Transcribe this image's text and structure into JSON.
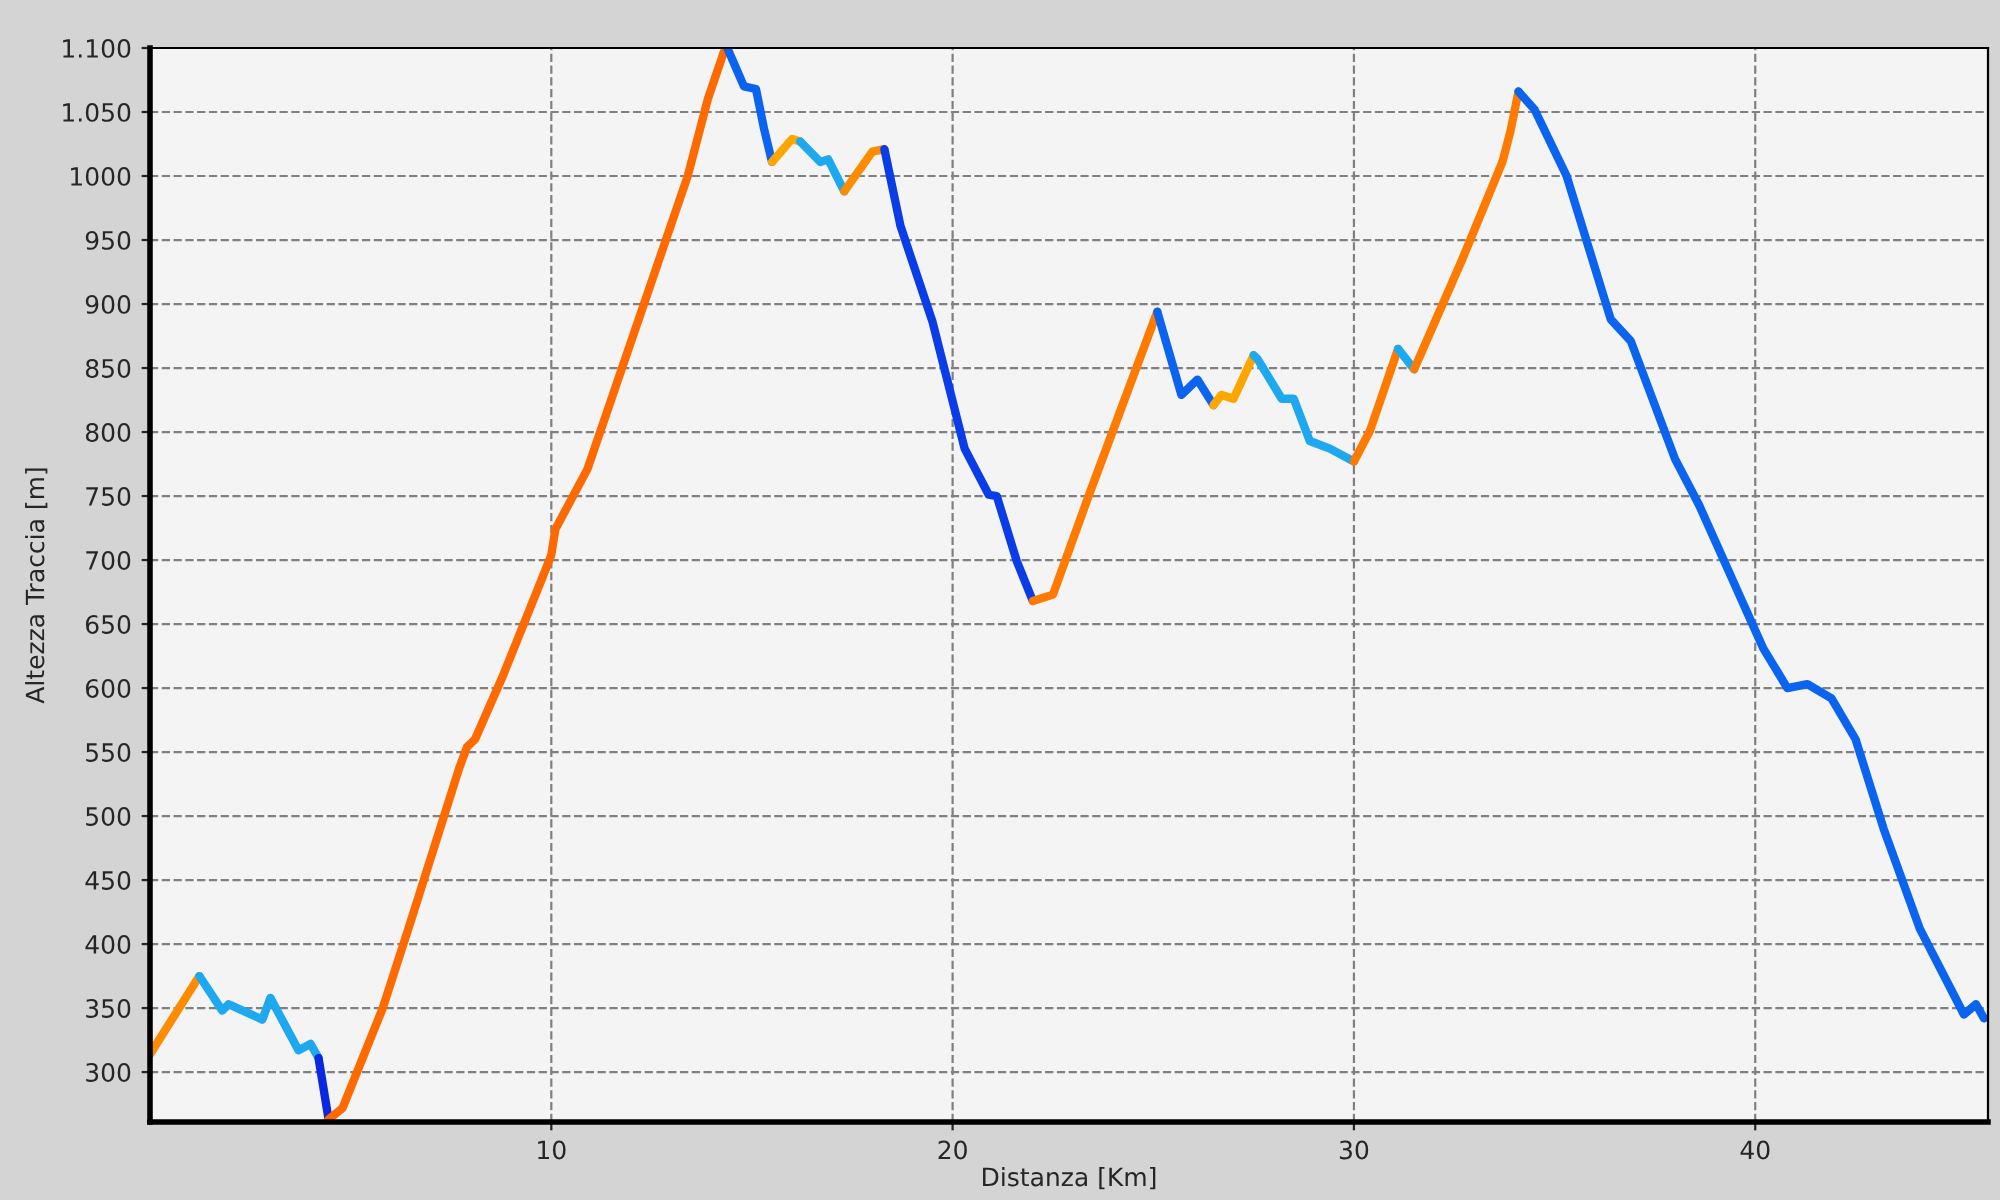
{
  "chart_data": {
    "type": "line",
    "xlabel": "Distanza [Km]",
    "ylabel": "Altezza Traccia [m]",
    "xlim": [
      0,
      45.8
    ],
    "xticks": [
      10,
      20,
      30,
      40
    ],
    "ylim": [
      261,
      1100
    ],
    "yticks": [
      300,
      350,
      400,
      450,
      500,
      550,
      600,
      650,
      700,
      750,
      800,
      850,
      900,
      950,
      1000,
      {
        "value": 1050,
        "label": "1.050"
      },
      {
        "value": 1100,
        "label": "1.100"
      }
    ],
    "grid": true,
    "line_style": "solid",
    "legend": false,
    "series": [
      {
        "color": "#ff8c00",
        "x": [
          0,
          1.23
        ],
        "values": [
          314,
          375
        ]
      },
      {
        "color": "#1ea8f0",
        "x": [
          1.23,
          1.8,
          1.96,
          2.8,
          3.0,
          3.7,
          4.0,
          4.2
        ],
        "values": [
          375,
          348,
          353,
          341,
          358,
          317,
          322,
          311
        ]
      },
      {
        "color": "#0a28e0",
        "x": [
          4.2,
          4.45
        ],
        "values": [
          311,
          263
        ]
      },
      {
        "color": "#ff6a00",
        "x": [
          4.45,
          4.8,
          5.8,
          6.5,
          7.7,
          7.9,
          8.1,
          8.8,
          9.8,
          10.0,
          10.1,
          10.9,
          13.4,
          13.9,
          14.3,
          14.4
        ],
        "values": [
          263,
          272,
          350,
          418,
          537,
          554,
          560,
          610,
          688,
          704,
          724,
          771,
          1000,
          1060,
          1097,
          1099
        ]
      },
      {
        "color": "#0a64f0",
        "x": [
          14.4,
          14.8,
          15.1,
          15.3,
          15.5
        ],
        "values": [
          1099,
          1070,
          1068,
          1037,
          1011
        ]
      },
      {
        "color": "#ffa500",
        "x": [
          15.5,
          16.0,
          16.2
        ],
        "values": [
          1011,
          1029,
          1027
        ]
      },
      {
        "color": "#1ea8f0",
        "x": [
          16.2,
          16.7,
          16.9,
          17.3
        ],
        "values": [
          1027,
          1011,
          1013,
          988
        ]
      },
      {
        "color": "#ff8c00",
        "x": [
          17.3,
          18.0,
          18.3
        ],
        "values": [
          988,
          1019,
          1021
        ]
      },
      {
        "color": "#0a3ce8",
        "x": [
          18.3,
          18.7,
          19.5,
          20.3,
          20.9,
          21.1,
          21.6,
          22.0
        ],
        "values": [
          1021,
          961,
          886,
          787,
          751,
          750,
          699,
          668
        ]
      },
      {
        "color": "#ff7a00",
        "x": [
          22.0,
          22.5,
          23.4,
          25.1
        ],
        "values": [
          668,
          673,
          751,
          894
        ]
      },
      {
        "color": "#0a64f0",
        "x": [
          25.1,
          25.7,
          26.1,
          26.5
        ],
        "values": [
          894,
          829,
          841,
          821
        ]
      },
      {
        "color": "#ffa500",
        "x": [
          26.5,
          26.7,
          27.0,
          27.5
        ],
        "values": [
          821,
          829,
          826,
          860
        ]
      },
      {
        "color": "#1ea8f0",
        "x": [
          27.5,
          27.6,
          28.2,
          28.5,
          28.9,
          29.4,
          30.0
        ],
        "values": [
          860,
          857,
          826,
          826,
          793,
          787,
          777
        ]
      },
      {
        "color": "#ff7a00",
        "x": [
          30.0,
          30.4,
          31.1
        ],
        "values": [
          777,
          801,
          865
        ]
      },
      {
        "color": "#1ea8f0",
        "x": [
          31.1,
          31.5
        ],
        "values": [
          865,
          849
        ]
      },
      {
        "color": "#ff7a00",
        "x": [
          31.5,
          32.7,
          33.7,
          33.9,
          34.1
        ],
        "values": [
          849,
          935,
          1011,
          1035,
          1066
        ]
      },
      {
        "color": "#0a64f0",
        "x": [
          34.1,
          34.5,
          35.3,
          36.4,
          36.9,
          38.0,
          38.6,
          39.6,
          39.9,
          40.2,
          40.8,
          41.3,
          41.9,
          42.5,
          43.2,
          44.1,
          45.2,
          45.5,
          45.7
        ],
        "values": [
          1066,
          1052,
          1000,
          888,
          871,
          779,
          743,
          673,
          652,
          631,
          600,
          603,
          592,
          560,
          490,
          412,
          345,
          353,
          342
        ]
      }
    ]
  }
}
